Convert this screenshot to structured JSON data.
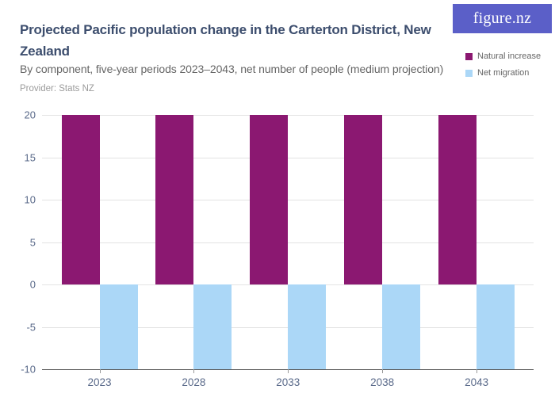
{
  "header": {
    "title": "Projected Pacific population change in the Carterton District, New Zealand",
    "subtitle": "By component, five-year periods 2023–2043, net number of people (medium projection)",
    "provider": "Provider: Stats NZ"
  },
  "logo": {
    "text": "figure.nz"
  },
  "legend": [
    {
      "label": "Natural increase",
      "color": "#8B1871"
    },
    {
      "label": "Net migration",
      "color": "#ABD7F7"
    }
  ],
  "colors": {
    "natural_increase": "#8B1871",
    "net_migration": "#ABD7F7",
    "title": "#3D4E6E",
    "axis_text": "#5A6A8A",
    "gridline": "#E3E3E3",
    "axis_line": "#555555",
    "logo_background": "#5B5FC8"
  },
  "chart_data": {
    "type": "bar",
    "title": "Projected Pacific population change in the Carterton District, New Zealand",
    "subtitle": "By component, five-year periods 2023–2043, net number of people (medium projection)",
    "categories": [
      "2023",
      "2028",
      "2033",
      "2038",
      "2043"
    ],
    "series": [
      {
        "name": "Natural increase",
        "color": "#8B1871",
        "values": [
          20,
          20,
          20,
          20,
          20
        ]
      },
      {
        "name": "Net migration",
        "color": "#ABD7F7",
        "values": [
          -10,
          -10,
          -10,
          -10,
          -10
        ]
      }
    ],
    "xlabel": "",
    "ylabel": "",
    "ylim": [
      -10,
      20
    ],
    "yticks": [
      20,
      15,
      10,
      5,
      0,
      -5,
      -10
    ],
    "grid": true,
    "legend_position": "top-right"
  }
}
